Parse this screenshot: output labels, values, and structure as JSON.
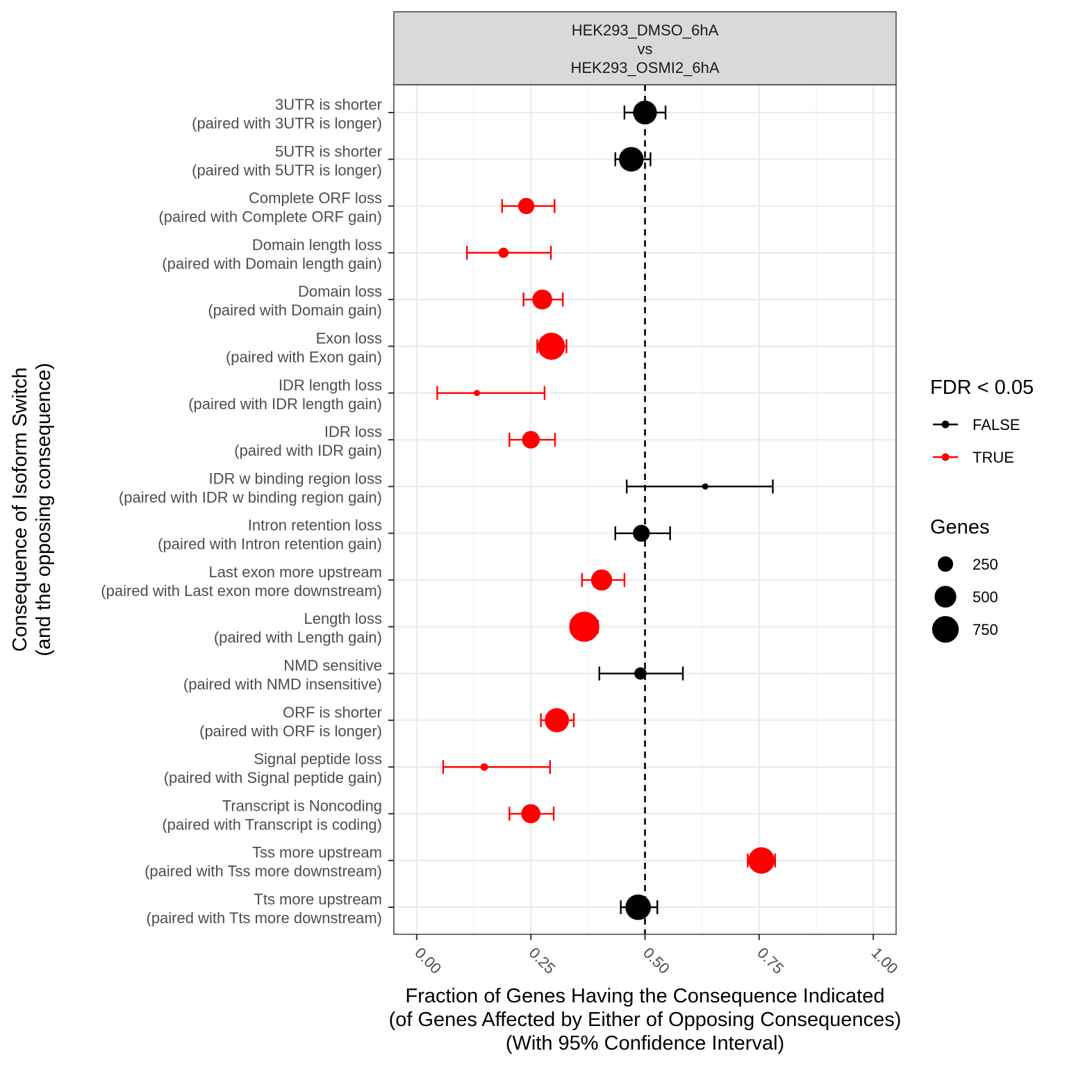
{
  "chart_data": {
    "type": "scatter",
    "facet_label": [
      "HEK293_DMSO_6hA",
      "vs",
      "HEK293_OSMI2_6hA"
    ],
    "xlabel": [
      "Fraction of Genes Having the Consequence Indicated",
      "(of Genes Affected by Either of Opposing Consequences)",
      "(With 95% Confidence Interval)"
    ],
    "ylabel": [
      "Consequence of Isoform Switch",
      "(and the opposing consequence)"
    ],
    "xlim": [
      -0.05,
      1.05
    ],
    "x_ticks": [
      0,
      0.25,
      0.5,
      0.75,
      1
    ],
    "x_tick_labels": [
      "0.00",
      "0.25",
      "0.50",
      "0.75",
      "1.00"
    ],
    "reference_line_x": 0.5,
    "grid": true,
    "legend_color": {
      "title": "FDR < 0.05",
      "position": "right",
      "entries": [
        {
          "label": "FALSE",
          "color": "#000000"
        },
        {
          "label": "TRUE",
          "color": "#ff0000"
        }
      ]
    },
    "legend_size": {
      "title": "Genes",
      "position": "right",
      "entries": [
        {
          "label": "250",
          "value": 250
        },
        {
          "label": "500",
          "value": 500
        },
        {
          "label": "750",
          "value": 750
        }
      ]
    },
    "categories": [
      {
        "label": [
          "3UTR is shorter",
          "(paired with 3UTR is longer)"
        ],
        "x": 0.5,
        "ci": [
          0.455,
          0.545
        ],
        "genes": 600,
        "fdr": false
      },
      {
        "label": [
          "5UTR is shorter",
          "(paired with 5UTR is longer)"
        ],
        "x": 0.47,
        "ci": [
          0.435,
          0.512
        ],
        "genes": 640,
        "fdr": false
      },
      {
        "label": [
          "Complete ORF loss",
          "(paired with Complete ORF gain)"
        ],
        "x": 0.24,
        "ci": [
          0.187,
          0.302
        ],
        "genes": 280,
        "fdr": true
      },
      {
        "label": [
          "Domain length loss",
          "(paired with Domain length gain)"
        ],
        "x": 0.19,
        "ci": [
          0.11,
          0.294
        ],
        "genes": 110,
        "fdr": true
      },
      {
        "label": [
          "Domain loss",
          "(paired with Domain gain)"
        ],
        "x": 0.275,
        "ci": [
          0.234,
          0.32
        ],
        "genes": 420,
        "fdr": true
      },
      {
        "label": [
          "Exon loss",
          "(paired with Exon gain)"
        ],
        "x": 0.295,
        "ci": [
          0.264,
          0.328
        ],
        "genes": 780,
        "fdr": true
      },
      {
        "label": [
          "IDR length loss",
          "(paired with IDR length gain)"
        ],
        "x": 0.132,
        "ci": [
          0.045,
          0.28
        ],
        "genes": 40,
        "fdr": true
      },
      {
        "label": [
          "IDR loss",
          "(paired with IDR gain)"
        ],
        "x": 0.25,
        "ci": [
          0.203,
          0.303
        ],
        "genes": 330,
        "fdr": true
      },
      {
        "label": [
          "IDR w binding region loss",
          "(paired with IDR w binding region gain)"
        ],
        "x": 0.632,
        "ci": [
          0.46,
          0.78
        ],
        "genes": 30,
        "fdr": false
      },
      {
        "label": [
          "Intron retention loss",
          "(paired with Intron retention gain)"
        ],
        "x": 0.492,
        "ci": [
          0.435,
          0.555
        ],
        "genes": 300,
        "fdr": false
      },
      {
        "label": [
          "Last exon more upstream",
          "(paired with Last exon more downstream)"
        ],
        "x": 0.405,
        "ci": [
          0.362,
          0.455
        ],
        "genes": 470,
        "fdr": true
      },
      {
        "label": [
          "Length loss",
          "(paired with Length gain)"
        ],
        "x": 0.367,
        "ci": [
          0.338,
          0.397
        ],
        "genes": 960,
        "fdr": true
      },
      {
        "label": [
          "NMD sensitive",
          "(paired with NMD insensitive)"
        ],
        "x": 0.49,
        "ci": [
          0.4,
          0.583
        ],
        "genes": 160,
        "fdr": false
      },
      {
        "label": [
          "ORF is shorter",
          "(paired with ORF is longer)"
        ],
        "x": 0.307,
        "ci": [
          0.272,
          0.344
        ],
        "genes": 620,
        "fdr": true
      },
      {
        "label": [
          "Signal peptide loss",
          "(paired with Signal peptide gain)"
        ],
        "x": 0.148,
        "ci": [
          0.058,
          0.292
        ],
        "genes": 60,
        "fdr": true
      },
      {
        "label": [
          "Transcript is Noncoding",
          "(paired with Transcript is coding)"
        ],
        "x": 0.25,
        "ci": [
          0.203,
          0.3
        ],
        "genes": 390,
        "fdr": true
      },
      {
        "label": [
          "Tss more upstream",
          "(paired with Tss more downstream)"
        ],
        "x": 0.755,
        "ci": [
          0.725,
          0.785
        ],
        "genes": 740,
        "fdr": true
      },
      {
        "label": [
          "Tts more upstream",
          "(paired with Tts more downstream)"
        ],
        "x": 0.485,
        "ci": [
          0.447,
          0.527
        ],
        "genes": 690,
        "fdr": false
      }
    ]
  }
}
